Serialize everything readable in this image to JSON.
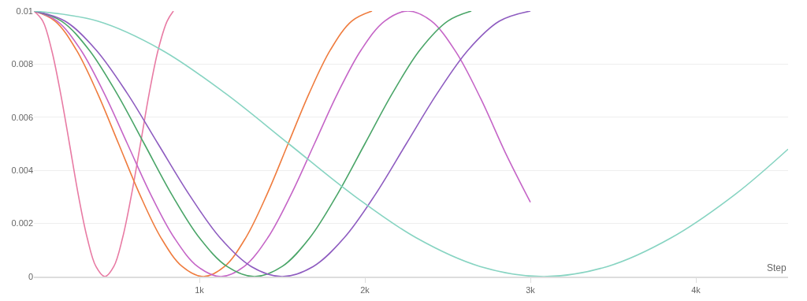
{
  "chart_data": {
    "type": "line",
    "xlabel": "Step",
    "xlim": [
      0,
      4557
    ],
    "ylim": [
      0,
      0.01
    ],
    "xticks": [
      {
        "value": 1000,
        "label": "1k"
      },
      {
        "value": 2000,
        "label": "2k"
      },
      {
        "value": 3000,
        "label": "3k"
      },
      {
        "value": 4000,
        "label": "4k"
      }
    ],
    "yticks": [
      0,
      0.002,
      0.004,
      0.006,
      0.008,
      0.01
    ],
    "grid": "y",
    "marker": "none",
    "line_style": "solid",
    "series": [
      {
        "color": "#e87ba4",
        "x": [
          0,
          54,
          107,
          161,
          215,
          268,
          322,
          375,
          429,
          483,
          536,
          590,
          644,
          697,
          751,
          805,
          843
        ],
        "values": [
          0.01,
          0.00962,
          0.00854,
          0.00691,
          0.005,
          0.00309,
          0.00146,
          0.00038,
          0,
          0.00038,
          0.00146,
          0.00309,
          0.005,
          0.00691,
          0.00854,
          0.00962,
          0.01
        ]
      },
      {
        "color": "#ef7c3e",
        "x": [
          0,
          128,
          256,
          384,
          512,
          640,
          768,
          896,
          1024,
          1152,
          1280,
          1408,
          1536,
          1664,
          1792,
          1920,
          2043
        ],
        "values": [
          0.01,
          0.00962,
          0.00854,
          0.00691,
          0.005,
          0.00309,
          0.00146,
          0.00038,
          0,
          0.00038,
          0.00146,
          0.00309,
          0.005,
          0.00691,
          0.00854,
          0.00962,
          0.01
        ]
      },
      {
        "color": "#c565c7",
        "x": [
          0,
          141,
          283,
          424,
          565,
          706,
          848,
          989,
          1130,
          1271,
          1413,
          1554,
          1695,
          1836,
          1978,
          2119,
          2260,
          2400,
          2550,
          2700,
          2850,
          3000
        ],
        "values": [
          0.01,
          0.00962,
          0.00854,
          0.00691,
          0.005,
          0.00309,
          0.00146,
          0.00038,
          0,
          0.00038,
          0.00146,
          0.00309,
          0.005,
          0.00691,
          0.00854,
          0.00962,
          0.01,
          0.00963,
          0.00846,
          0.0067,
          0.00465,
          0.0028
        ]
      },
      {
        "color": "#4aa568",
        "x": [
          0,
          167,
          333,
          500,
          667,
          833,
          1000,
          1167,
          1333,
          1500,
          1667,
          1833,
          2000,
          2167,
          2333,
          2500,
          2643
        ],
        "values": [
          0.01,
          0.00962,
          0.00854,
          0.00691,
          0.005,
          0.00309,
          0.00146,
          0.00038,
          0,
          0.00038,
          0.00146,
          0.00309,
          0.005,
          0.00691,
          0.00854,
          0.00962,
          0.01
        ]
      },
      {
        "color": "#8e5cc0",
        "x": [
          0,
          188,
          375,
          563,
          750,
          938,
          1125,
          1313,
          1500,
          1688,
          1875,
          2063,
          2250,
          2438,
          2625,
          2813,
          3000
        ],
        "values": [
          0.01,
          0.00962,
          0.00854,
          0.00691,
          0.005,
          0.00309,
          0.00146,
          0.00038,
          0,
          0.00038,
          0.00146,
          0.00309,
          0.005,
          0.00691,
          0.00854,
          0.00962,
          0.01
        ]
      },
      {
        "color": "#87d4c2",
        "x": [
          0,
          385,
          770,
          1155,
          1540,
          1925,
          2310,
          2696,
          3081,
          3466,
          3851,
          4236,
          4557
        ],
        "values": [
          0.01,
          0.00962,
          0.00854,
          0.00691,
          0.005,
          0.00309,
          0.00146,
          0.00038,
          0,
          0.00038,
          0.00146,
          0.00309,
          0.0048
        ]
      }
    ]
  }
}
